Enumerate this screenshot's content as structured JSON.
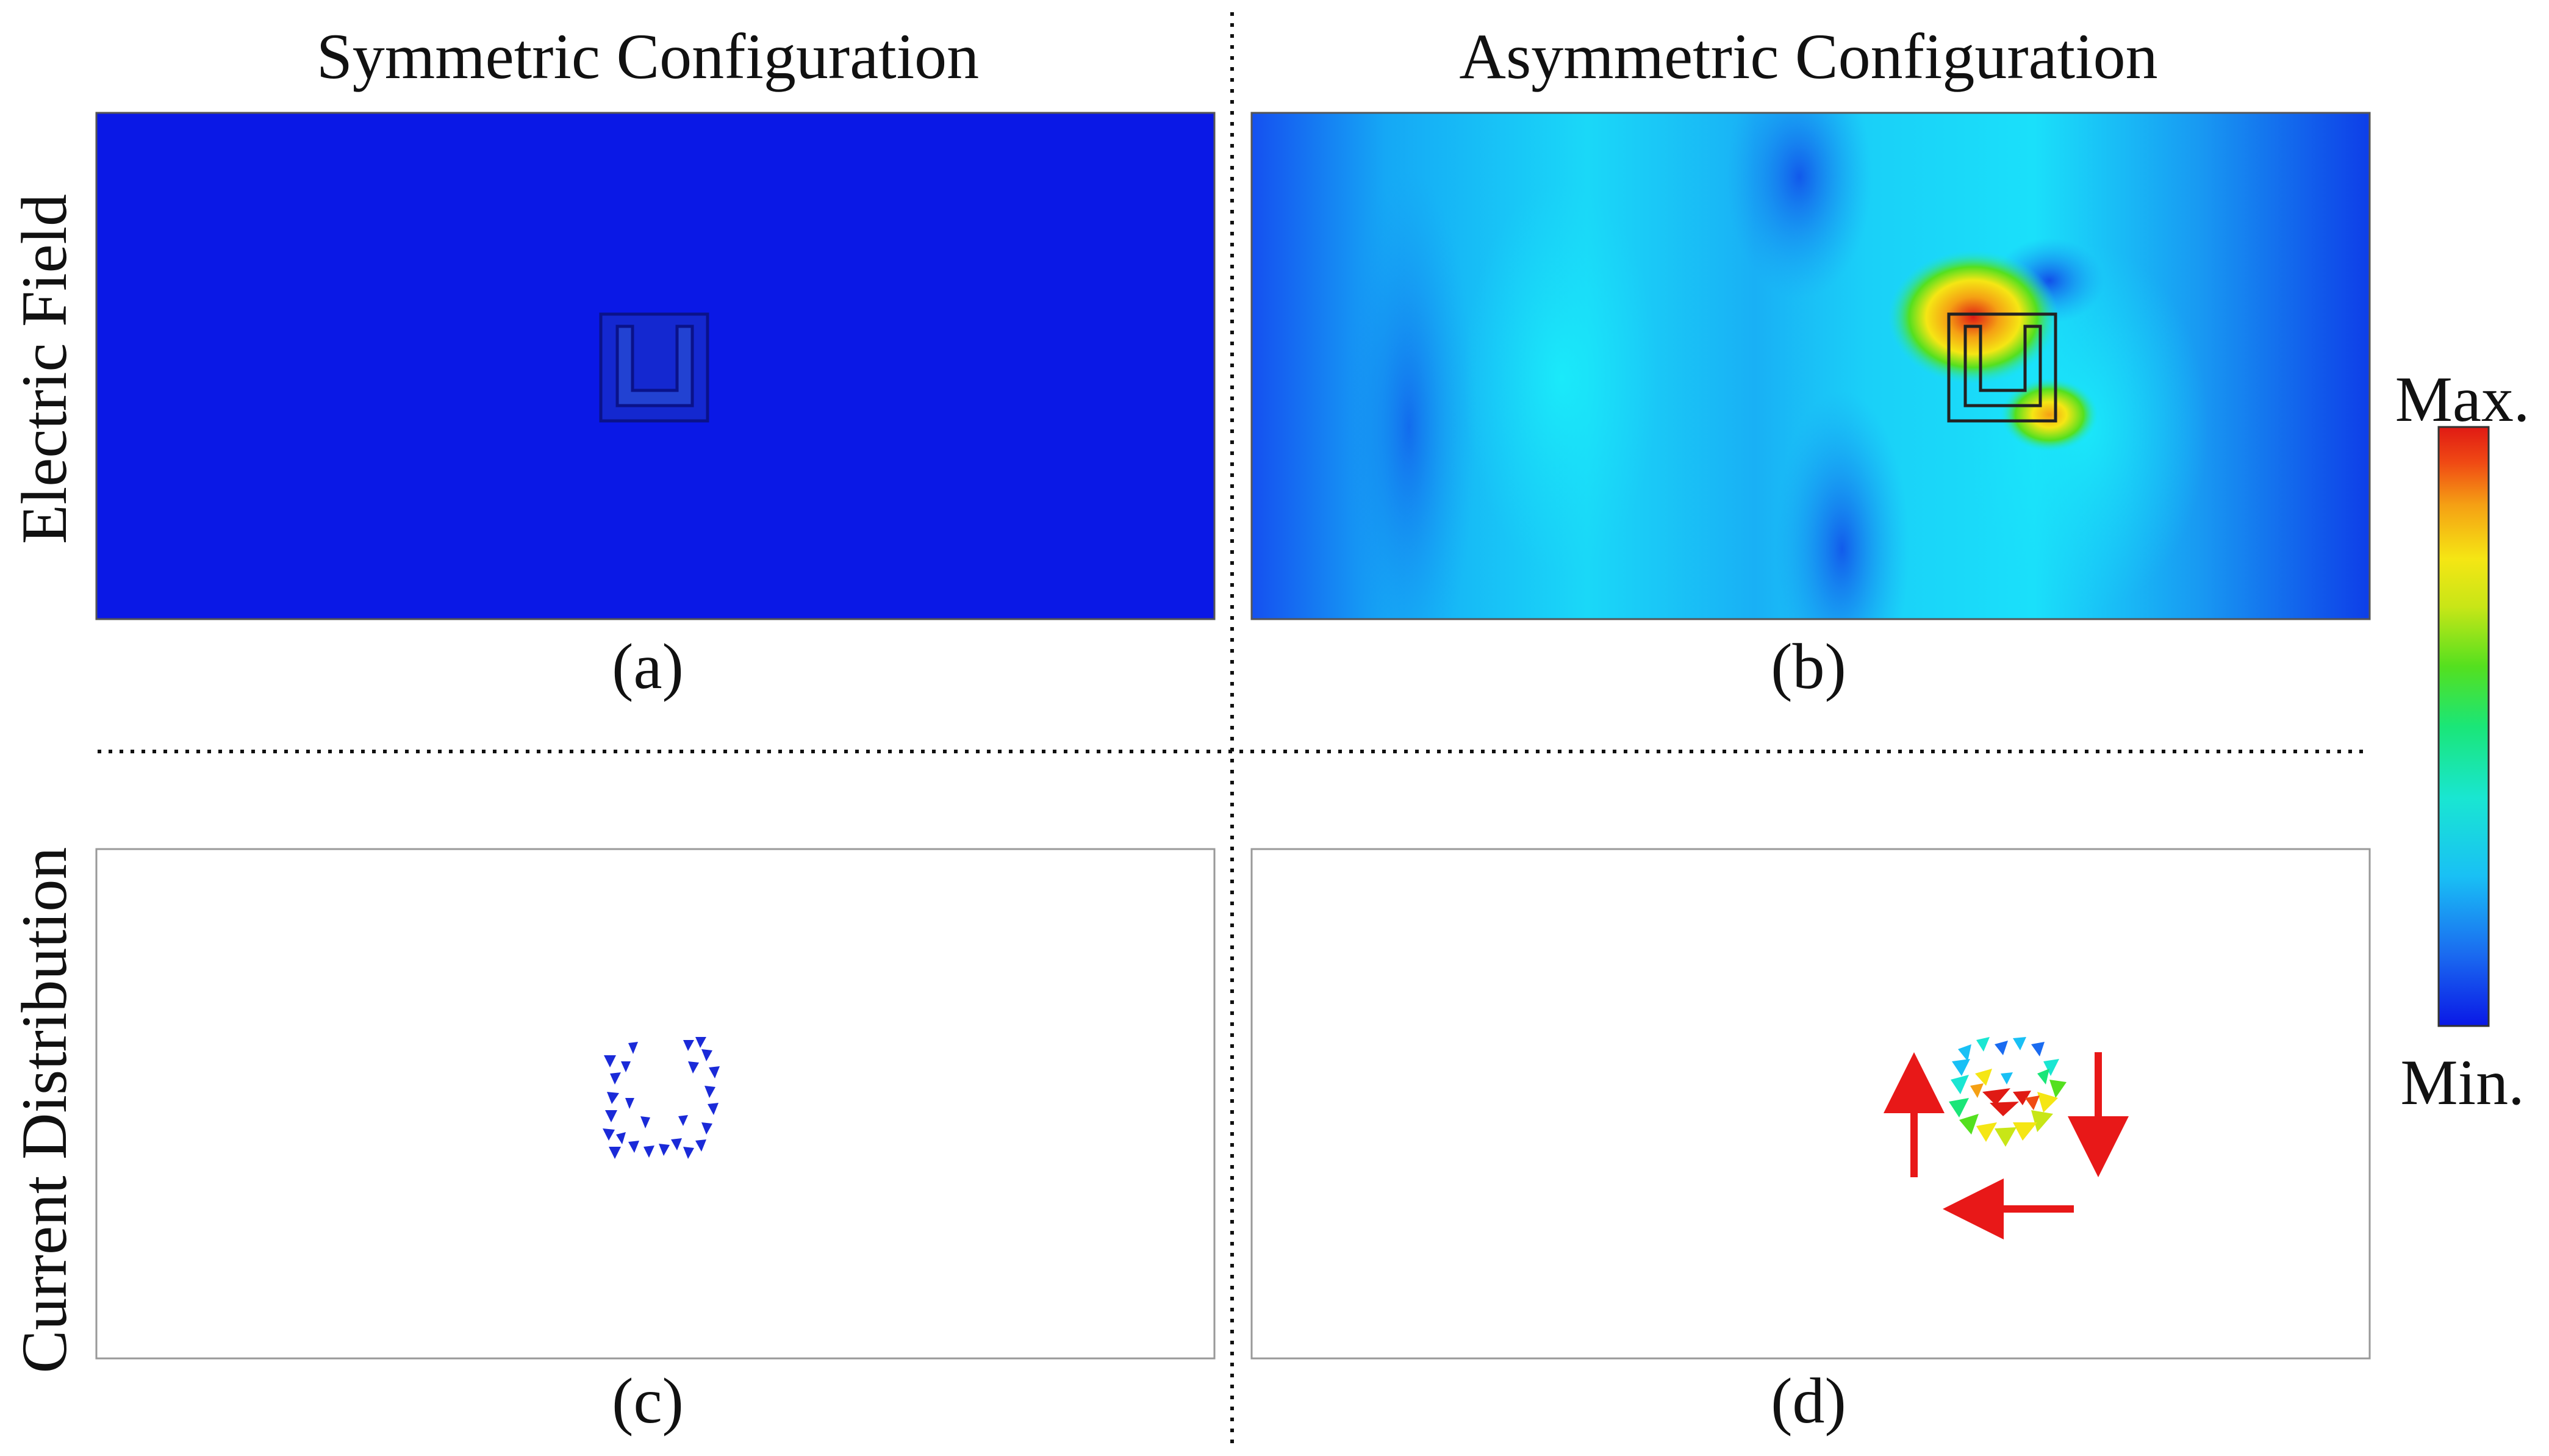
{
  "columns": {
    "left_title": "Symmetric Configuration",
    "right_title": "Asymmetric Configuration"
  },
  "rows": {
    "top_label": "Electric Field",
    "bottom_label": "Current Distribution"
  },
  "panels": {
    "a": "(a)",
    "b": "(b)",
    "c": "(c)",
    "d": "(d)"
  },
  "colorbar": {
    "max_label": "Max.",
    "min_label": "Min.",
    "colors": [
      "#0a18e6",
      "#1a6bf0",
      "#19c0f5",
      "#19e6d2",
      "#1ae678",
      "#54e01f",
      "#c8e617",
      "#f5e614",
      "#f5a014",
      "#f04a14",
      "#e01a14"
    ]
  },
  "colors": {
    "field_min": "#0a18e6",
    "field_max": "#e01a14",
    "flow_arrow": "#e81818"
  }
}
